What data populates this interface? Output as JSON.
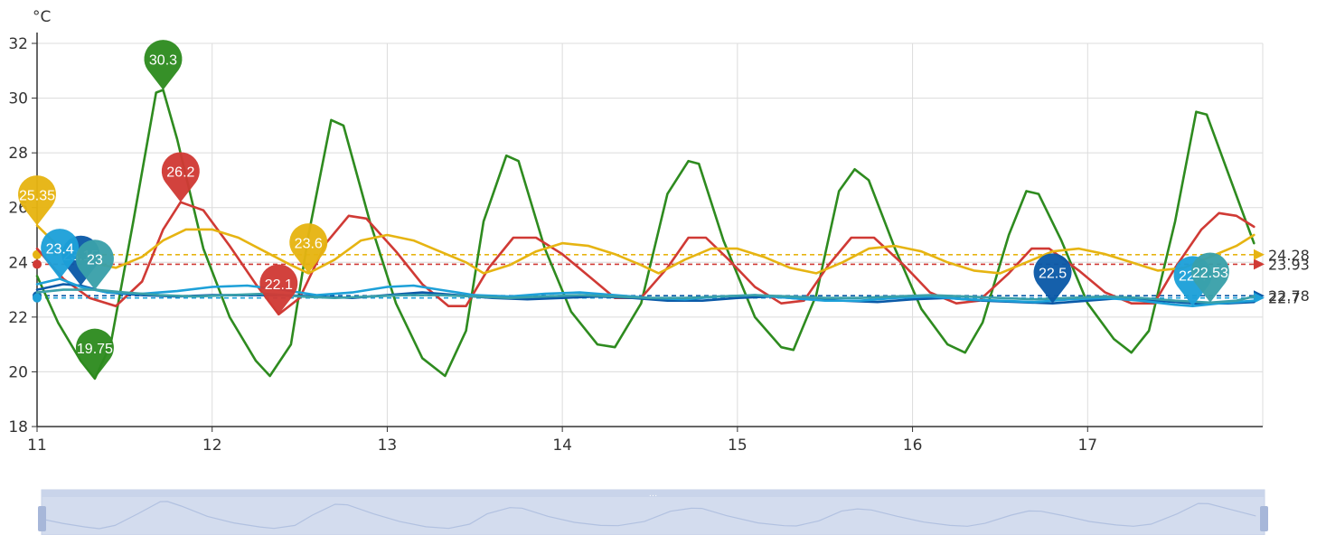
{
  "chart_data": {
    "type": "line",
    "unit": "°C",
    "ylim": [
      18,
      32
    ],
    "yticks": [
      18,
      20,
      22,
      24,
      26,
      28,
      30,
      32
    ],
    "xlim": [
      11,
      18
    ],
    "xticks": [
      11,
      12,
      13,
      14,
      15,
      16,
      17
    ],
    "grid": true,
    "legend": "none",
    "series": [
      {
        "color": "#2e8b1f",
        "points": [
          [
            11.0,
            23.5
          ],
          [
            11.12,
            21.8
          ],
          [
            11.25,
            20.4
          ],
          [
            11.33,
            19.75
          ],
          [
            11.42,
            21.0
          ],
          [
            11.55,
            25.5
          ],
          [
            11.68,
            30.2
          ],
          [
            11.72,
            30.3
          ],
          [
            11.8,
            28.5
          ],
          [
            11.95,
            24.5
          ],
          [
            12.1,
            22.0
          ],
          [
            12.25,
            20.4
          ],
          [
            12.33,
            19.85
          ],
          [
            12.45,
            21.0
          ],
          [
            12.55,
            25.0
          ],
          [
            12.68,
            29.2
          ],
          [
            12.75,
            29.0
          ],
          [
            12.9,
            25.5
          ],
          [
            13.05,
            22.5
          ],
          [
            13.2,
            20.5
          ],
          [
            13.33,
            19.85
          ],
          [
            13.45,
            21.5
          ],
          [
            13.55,
            25.5
          ],
          [
            13.68,
            27.9
          ],
          [
            13.75,
            27.7
          ],
          [
            13.9,
            24.5
          ],
          [
            14.05,
            22.2
          ],
          [
            14.2,
            21.0
          ],
          [
            14.3,
            20.9
          ],
          [
            14.45,
            22.5
          ],
          [
            14.6,
            26.5
          ],
          [
            14.72,
            27.7
          ],
          [
            14.78,
            27.6
          ],
          [
            14.92,
            24.8
          ],
          [
            15.1,
            22.0
          ],
          [
            15.25,
            20.9
          ],
          [
            15.32,
            20.8
          ],
          [
            15.45,
            22.8
          ],
          [
            15.58,
            26.6
          ],
          [
            15.67,
            27.4
          ],
          [
            15.75,
            27.0
          ],
          [
            15.9,
            24.5
          ],
          [
            16.05,
            22.3
          ],
          [
            16.2,
            21.0
          ],
          [
            16.3,
            20.7
          ],
          [
            16.4,
            21.8
          ],
          [
            16.55,
            25.0
          ],
          [
            16.65,
            26.6
          ],
          [
            16.72,
            26.5
          ],
          [
            16.85,
            24.8
          ],
          [
            17.0,
            22.5
          ],
          [
            17.15,
            21.2
          ],
          [
            17.25,
            20.7
          ],
          [
            17.35,
            21.5
          ],
          [
            17.5,
            25.5
          ],
          [
            17.62,
            29.5
          ],
          [
            17.68,
            29.4
          ],
          [
            17.8,
            27.3
          ],
          [
            17.95,
            24.7
          ]
        ]
      },
      {
        "color": "#d03a35",
        "avg": 23.93,
        "points": [
          [
            11.0,
            24.5
          ],
          [
            11.15,
            23.4
          ],
          [
            11.3,
            22.7
          ],
          [
            11.45,
            22.4
          ],
          [
            11.6,
            23.3
          ],
          [
            11.72,
            25.2
          ],
          [
            11.82,
            26.2
          ],
          [
            11.95,
            25.9
          ],
          [
            12.1,
            24.6
          ],
          [
            12.25,
            23.2
          ],
          [
            12.38,
            22.1
          ],
          [
            12.5,
            22.7
          ],
          [
            12.65,
            24.7
          ],
          [
            12.78,
            25.7
          ],
          [
            12.88,
            25.6
          ],
          [
            13.05,
            24.4
          ],
          [
            13.2,
            23.2
          ],
          [
            13.35,
            22.4
          ],
          [
            13.45,
            22.4
          ],
          [
            13.58,
            23.8
          ],
          [
            13.72,
            24.9
          ],
          [
            13.85,
            24.9
          ],
          [
            14.0,
            24.3
          ],
          [
            14.15,
            23.5
          ],
          [
            14.3,
            22.7
          ],
          [
            14.45,
            22.7
          ],
          [
            14.6,
            23.8
          ],
          [
            14.72,
            24.9
          ],
          [
            14.82,
            24.9
          ],
          [
            14.95,
            24.1
          ],
          [
            15.1,
            23.1
          ],
          [
            15.25,
            22.5
          ],
          [
            15.38,
            22.6
          ],
          [
            15.52,
            23.9
          ],
          [
            15.65,
            24.9
          ],
          [
            15.78,
            24.9
          ],
          [
            15.95,
            23.9
          ],
          [
            16.1,
            22.9
          ],
          [
            16.25,
            22.5
          ],
          [
            16.38,
            22.6
          ],
          [
            16.55,
            23.6
          ],
          [
            16.68,
            24.5
          ],
          [
            16.78,
            24.5
          ],
          [
            16.95,
            23.7
          ],
          [
            17.1,
            22.9
          ],
          [
            17.25,
            22.5
          ],
          [
            17.38,
            22.5
          ],
          [
            17.5,
            23.8
          ],
          [
            17.65,
            25.2
          ],
          [
            17.75,
            25.8
          ],
          [
            17.85,
            25.7
          ],
          [
            17.95,
            25.3
          ]
        ]
      },
      {
        "color": "#e6b412",
        "avg": 24.28,
        "points": [
          [
            11.0,
            25.35
          ],
          [
            11.15,
            24.4
          ],
          [
            11.3,
            24.0
          ],
          [
            11.45,
            23.8
          ],
          [
            11.6,
            24.2
          ],
          [
            11.72,
            24.8
          ],
          [
            11.85,
            25.2
          ],
          [
            12.0,
            25.2
          ],
          [
            12.15,
            24.9
          ],
          [
            12.3,
            24.4
          ],
          [
            12.45,
            23.9
          ],
          [
            12.55,
            23.6
          ],
          [
            12.7,
            24.1
          ],
          [
            12.85,
            24.8
          ],
          [
            13.0,
            25.0
          ],
          [
            13.15,
            24.8
          ],
          [
            13.3,
            24.4
          ],
          [
            13.45,
            24.0
          ],
          [
            13.55,
            23.6
          ],
          [
            13.7,
            23.9
          ],
          [
            13.85,
            24.4
          ],
          [
            14.0,
            24.7
          ],
          [
            14.15,
            24.6
          ],
          [
            14.3,
            24.3
          ],
          [
            14.45,
            23.9
          ],
          [
            14.55,
            23.6
          ],
          [
            14.7,
            24.1
          ],
          [
            14.85,
            24.5
          ],
          [
            15.0,
            24.5
          ],
          [
            15.15,
            24.2
          ],
          [
            15.3,
            23.8
          ],
          [
            15.45,
            23.6
          ],
          [
            15.6,
            24.0
          ],
          [
            15.75,
            24.5
          ],
          [
            15.9,
            24.6
          ],
          [
            16.05,
            24.4
          ],
          [
            16.2,
            24.0
          ],
          [
            16.35,
            23.7
          ],
          [
            16.5,
            23.6
          ],
          [
            16.65,
            24.0
          ],
          [
            16.8,
            24.4
          ],
          [
            16.95,
            24.5
          ],
          [
            17.1,
            24.3
          ],
          [
            17.25,
            24.0
          ],
          [
            17.4,
            23.7
          ],
          [
            17.55,
            23.8
          ],
          [
            17.7,
            24.2
          ],
          [
            17.85,
            24.6
          ],
          [
            17.95,
            25.0
          ]
        ]
      },
      {
        "color": "#0b5aa8",
        "avg": 22.78,
        "points": [
          [
            11.0,
            23.0
          ],
          [
            11.15,
            23.2
          ],
          [
            11.25,
            23.15
          ],
          [
            11.4,
            22.9
          ],
          [
            11.6,
            22.8
          ],
          [
            11.8,
            22.75
          ],
          [
            12.0,
            22.8
          ],
          [
            12.2,
            22.8
          ],
          [
            12.4,
            22.8
          ],
          [
            12.6,
            22.75
          ],
          [
            12.8,
            22.7
          ],
          [
            13.0,
            22.8
          ],
          [
            13.2,
            22.9
          ],
          [
            13.4,
            22.8
          ],
          [
            13.6,
            22.7
          ],
          [
            13.8,
            22.65
          ],
          [
            14.0,
            22.7
          ],
          [
            14.2,
            22.75
          ],
          [
            14.4,
            22.7
          ],
          [
            14.6,
            22.6
          ],
          [
            14.8,
            22.6
          ],
          [
            15.0,
            22.7
          ],
          [
            15.2,
            22.75
          ],
          [
            15.4,
            22.65
          ],
          [
            15.6,
            22.6
          ],
          [
            15.8,
            22.55
          ],
          [
            16.0,
            22.65
          ],
          [
            16.2,
            22.7
          ],
          [
            16.4,
            22.6
          ],
          [
            16.6,
            22.55
          ],
          [
            16.8,
            22.5
          ],
          [
            17.0,
            22.6
          ],
          [
            17.2,
            22.7
          ],
          [
            17.4,
            22.6
          ],
          [
            17.6,
            22.5
          ],
          [
            17.8,
            22.5
          ],
          [
            17.95,
            22.55
          ]
        ]
      },
      {
        "color": "#1da0d8",
        "avg": 22.7,
        "points": [
          [
            11.0,
            23.2
          ],
          [
            11.13,
            23.4
          ],
          [
            11.25,
            23.1
          ],
          [
            11.4,
            22.9
          ],
          [
            11.6,
            22.85
          ],
          [
            11.8,
            22.95
          ],
          [
            12.0,
            23.1
          ],
          [
            12.2,
            23.15
          ],
          [
            12.4,
            23.0
          ],
          [
            12.6,
            22.8
          ],
          [
            12.8,
            22.9
          ],
          [
            13.0,
            23.1
          ],
          [
            13.15,
            23.15
          ],
          [
            13.3,
            23.0
          ],
          [
            13.5,
            22.8
          ],
          [
            13.7,
            22.75
          ],
          [
            13.9,
            22.85
          ],
          [
            14.1,
            22.9
          ],
          [
            14.3,
            22.8
          ],
          [
            14.5,
            22.7
          ],
          [
            14.7,
            22.65
          ],
          [
            14.9,
            22.75
          ],
          [
            15.1,
            22.8
          ],
          [
            15.3,
            22.7
          ],
          [
            15.5,
            22.6
          ],
          [
            15.7,
            22.6
          ],
          [
            15.9,
            22.7
          ],
          [
            16.1,
            22.75
          ],
          [
            16.3,
            22.65
          ],
          [
            16.5,
            22.6
          ],
          [
            16.7,
            22.55
          ],
          [
            16.9,
            22.65
          ],
          [
            17.1,
            22.7
          ],
          [
            17.3,
            22.6
          ],
          [
            17.5,
            22.45
          ],
          [
            17.6,
            22.4
          ],
          [
            17.75,
            22.5
          ],
          [
            17.95,
            22.6
          ]
        ]
      },
      {
        "color": "#3aa0aa",
        "points": [
          [
            11.0,
            22.9
          ],
          [
            11.15,
            23.0
          ],
          [
            11.33,
            23.0
          ],
          [
            11.5,
            22.9
          ],
          [
            11.7,
            22.8
          ],
          [
            11.9,
            22.75
          ],
          [
            12.1,
            22.8
          ],
          [
            12.3,
            22.85
          ],
          [
            12.5,
            22.75
          ],
          [
            12.7,
            22.7
          ],
          [
            12.9,
            22.75
          ],
          [
            13.1,
            22.8
          ],
          [
            13.3,
            22.8
          ],
          [
            13.5,
            22.75
          ],
          [
            13.7,
            22.7
          ],
          [
            13.9,
            22.75
          ],
          [
            14.1,
            22.8
          ],
          [
            14.3,
            22.75
          ],
          [
            14.5,
            22.7
          ],
          [
            14.7,
            22.7
          ],
          [
            14.9,
            22.75
          ],
          [
            15.1,
            22.8
          ],
          [
            15.3,
            22.75
          ],
          [
            15.5,
            22.7
          ],
          [
            15.7,
            22.7
          ],
          [
            15.9,
            22.75
          ],
          [
            16.1,
            22.8
          ],
          [
            16.3,
            22.75
          ],
          [
            16.5,
            22.7
          ],
          [
            16.7,
            22.65
          ],
          [
            16.9,
            22.7
          ],
          [
            17.1,
            22.75
          ],
          [
            17.3,
            22.7
          ],
          [
            17.5,
            22.6
          ],
          [
            17.7,
            22.53
          ],
          [
            17.85,
            22.6
          ],
          [
            17.95,
            22.75
          ]
        ]
      }
    ],
    "markers": [
      {
        "series": 0,
        "label": "30.3",
        "x": 11.72,
        "y": 30.3
      },
      {
        "series": 0,
        "label": "19.75",
        "x": 11.33,
        "y": 19.75
      },
      {
        "series": 1,
        "label": "26.2",
        "x": 11.82,
        "y": 26.2
      },
      {
        "series": 1,
        "label": "22.1",
        "x": 12.38,
        "y": 22.1
      },
      {
        "series": 2,
        "label": "25.35",
        "x": 11.0,
        "y": 25.35
      },
      {
        "series": 2,
        "label": "23.6",
        "x": 12.55,
        "y": 23.6
      },
      {
        "series": 3,
        "label": "23.15",
        "x": 11.25,
        "y": 23.15
      },
      {
        "series": 3,
        "label": "22.5",
        "x": 16.8,
        "y": 22.5
      },
      {
        "series": 4,
        "label": "23.4",
        "x": 11.13,
        "y": 23.4
      },
      {
        "series": 4,
        "label": "22.4",
        "x": 17.6,
        "y": 22.4
      },
      {
        "series": 5,
        "label": "23",
        "x": 11.33,
        "y": 23.0
      },
      {
        "series": 5,
        "label": "22.53",
        "x": 17.7,
        "y": 22.53
      }
    ],
    "avg_labels": [
      {
        "series": 2,
        "label": "24.28"
      },
      {
        "series": 1,
        "label": "23.93"
      },
      {
        "series": 3,
        "label": "22.78"
      },
      {
        "series": 4,
        "label": "22.7"
      }
    ],
    "zoom_slider": {
      "start": 0,
      "end": 100,
      "handle_glyph": "…"
    }
  }
}
